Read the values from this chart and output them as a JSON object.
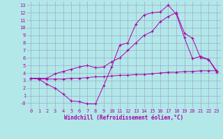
{
  "xlabel": "Windchill (Refroidissement éolien,°C)",
  "bg_color": "#b2e8e8",
  "line_color": "#aa00aa",
  "grid_color": "#9999cc",
  "xlim": [
    -0.5,
    23.5
  ],
  "ylim": [
    -0.7,
    13.5
  ],
  "xticks": [
    0,
    1,
    2,
    3,
    4,
    5,
    6,
    7,
    8,
    9,
    10,
    11,
    12,
    13,
    14,
    15,
    16,
    17,
    18,
    19,
    20,
    21,
    22,
    23
  ],
  "yticks": [
    0,
    1,
    2,
    3,
    4,
    5,
    6,
    7,
    8,
    9,
    10,
    11,
    12,
    13
  ],
  "ytick_labels": [
    "-0",
    "1",
    "2",
    "3",
    "4",
    "5",
    "6",
    "7",
    "8",
    "9",
    "10",
    "11",
    "12",
    "13"
  ],
  "line1_x": [
    0,
    1,
    2,
    3,
    4,
    5,
    6,
    7,
    8,
    9,
    10,
    11,
    12,
    13,
    14,
    15,
    16,
    17,
    18,
    19,
    20,
    21,
    22,
    23
  ],
  "line1_y": [
    3.3,
    3.2,
    2.5,
    2.0,
    1.2,
    0.3,
    0.2,
    -0.1,
    -0.1,
    2.3,
    4.8,
    7.7,
    8.0,
    10.5,
    11.7,
    12.0,
    12.1,
    13.0,
    11.8,
    8.7,
    5.9,
    6.2,
    5.8,
    4.3
  ],
  "line2_x": [
    0,
    1,
    2,
    3,
    4,
    5,
    6,
    7,
    8,
    9,
    10,
    11,
    12,
    13,
    14,
    15,
    16,
    17,
    18,
    19,
    20,
    21,
    22,
    23
  ],
  "line2_y": [
    3.3,
    3.2,
    3.2,
    3.2,
    3.2,
    3.3,
    3.3,
    3.4,
    3.5,
    3.5,
    3.6,
    3.7,
    3.7,
    3.8,
    3.8,
    3.9,
    4.0,
    4.1,
    4.1,
    4.2,
    4.2,
    4.3,
    4.3,
    4.3
  ],
  "line3_x": [
    0,
    1,
    2,
    3,
    4,
    5,
    6,
    7,
    8,
    9,
    10,
    11,
    12,
    13,
    14,
    15,
    16,
    17,
    18,
    19,
    20,
    21,
    22,
    23
  ],
  "line3_y": [
    3.3,
    3.3,
    3.3,
    3.9,
    4.2,
    4.5,
    4.8,
    5.0,
    4.7,
    4.8,
    5.5,
    6.0,
    7.0,
    8.0,
    9.0,
    9.5,
    10.8,
    11.5,
    12.0,
    9.3,
    8.6,
    6.0,
    5.8,
    4.1
  ],
  "font_size_ticks": 5,
  "font_size_xlabel": 5.5
}
